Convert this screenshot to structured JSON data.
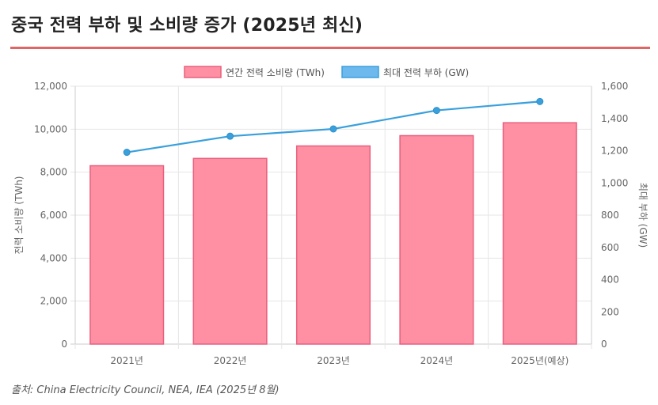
{
  "title": "중국 전력 부하 및 소비량 증가 (2025년 최신)",
  "source": "출처: China Electricity Council, NEA, IEA (2025년 8월)",
  "colors": {
    "accent_rule": "#e06666",
    "bar_fill": "#ff8fa3",
    "bar_stroke": "#e8607e",
    "line": "#3aa0dc",
    "legend_line_fill": "#6db8ec"
  },
  "chart_data": {
    "type": "bar+line",
    "categories": [
      "2021년",
      "2022년",
      "2023년",
      "2024년",
      "2025년(예상)"
    ],
    "series": [
      {
        "name": "연간 전력 소비량 (TWh)",
        "type": "bar",
        "axis": "left",
        "values": [
          8300,
          8640,
          9220,
          9700,
          10300
        ]
      },
      {
        "name": "최대 전력 부하 (GW)",
        "type": "line",
        "axis": "right",
        "values": [
          1190,
          1290,
          1335,
          1450,
          1505
        ]
      }
    ],
    "y_left": {
      "label": "전력 소비량 (TWh)",
      "min": 0,
      "max": 12000,
      "ticks": [
        "0",
        "2,000",
        "4,000",
        "6,000",
        "8,000",
        "10,000",
        "12,000"
      ]
    },
    "y_right": {
      "label": "최대 부하 (GW)",
      "min": 0,
      "max": 1600,
      "ticks": [
        "0",
        "200",
        "400",
        "600",
        "800",
        "1,000",
        "1,200",
        "1,400",
        "1,600"
      ]
    },
    "legend_position": "top-center",
    "grid": true
  }
}
